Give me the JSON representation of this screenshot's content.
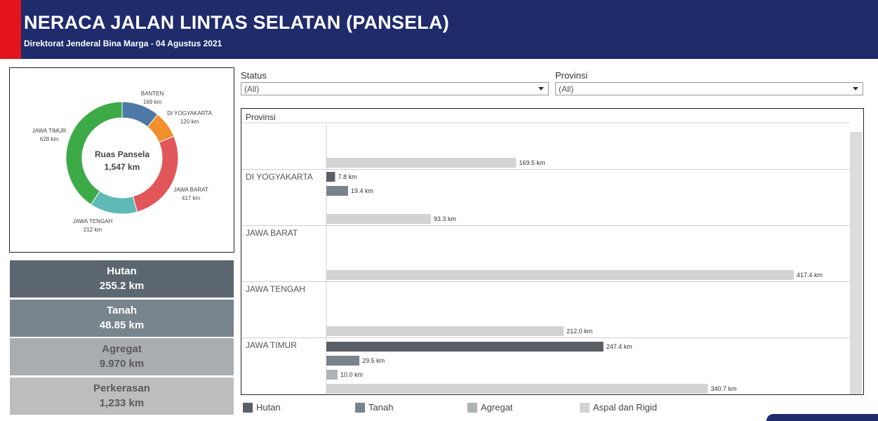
{
  "header": {
    "title": "NERACA JALAN LINTAS SELATAN (PANSELA)",
    "subtitle": "Direktorat Jenderal Bina Marga - 04 Agustus 2021"
  },
  "donut": {
    "center_title": "Ruas Pansela",
    "center_value": "1,547 km",
    "segments": [
      {
        "name": "BANTEN",
        "value_label": "169 km",
        "value": 169,
        "color": "#4e79a7"
      },
      {
        "name": "DI YOGYAKARTA",
        "value_label": "120 km",
        "value": 120,
        "color": "#f28e2b"
      },
      {
        "name": "JAWA BARAT",
        "value_label": "417 km",
        "value": 417,
        "color": "#e15759"
      },
      {
        "name": "JAWA TENGAH",
        "value_label": "212 km",
        "value": 212,
        "color": "#5fbab5"
      },
      {
        "name": "JAWA TIMUR",
        "value_label": "628 km",
        "value": 628,
        "color": "#3daa48"
      }
    ]
  },
  "kpis": [
    {
      "label": "Hutan",
      "value": "255.2 km",
      "bg": "#5b6670",
      "fg": "#ffffff"
    },
    {
      "label": "Tanah",
      "value": "48.85 km",
      "bg": "#79858c",
      "fg": "#ffffff"
    },
    {
      "label": "Agregat",
      "value": "9.970  km",
      "bg": "#a9adb0",
      "fg": "#5a5a5a"
    },
    {
      "label": "Perkerasan",
      "value": "1,233 km",
      "bg": "#bdbdbd",
      "fg": "#5a5a5a"
    }
  ],
  "filters": {
    "status_label": "Status",
    "status_value": "(All)",
    "provinsi_label": "Provinsi",
    "provinsi_value": "(All)"
  },
  "chart_header": "Provinsi",
  "chart_data": {
    "type": "bar",
    "orientation": "horizontal",
    "unit": "km",
    "series": [
      {
        "name": "Hutan",
        "color": "#5a5f66"
      },
      {
        "name": "Tanah",
        "color": "#79838c"
      },
      {
        "name": "Agregat",
        "color": "#b0b3b5"
      },
      {
        "name": "Aspal dan Rigid",
        "color": "#d3d3d3"
      }
    ],
    "groups": [
      {
        "province": "",
        "bars": [
          {
            "series": "Aspal dan Rigid",
            "value": 169.5,
            "label": "169.5 km"
          }
        ]
      },
      {
        "province": "DI YOGYAKARTA",
        "bars": [
          {
            "series": "Hutan",
            "value": 7.8,
            "label": "7.8 km"
          },
          {
            "series": "Tanah",
            "value": 19.4,
            "label": "19.4 km"
          },
          {
            "series": "Aspal dan Rigid",
            "value": 93.3,
            "label": "93.3 km"
          }
        ]
      },
      {
        "province": "JAWA BARAT",
        "bars": [
          {
            "series": "Aspal dan Rigid",
            "value": 417.4,
            "label": "417.4 km"
          }
        ]
      },
      {
        "province": "JAWA TENGAH",
        "bars": [
          {
            "series": "Aspal dan Rigid",
            "value": 212.0,
            "label": "212.0 km"
          }
        ]
      },
      {
        "province": "JAWA TIMUR",
        "bars": [
          {
            "series": "Hutan",
            "value": 247.4,
            "label": "247.4 km"
          },
          {
            "series": "Tanah",
            "value": 29.5,
            "label": "29.5 km"
          },
          {
            "series": "Agregat",
            "value": 10.0,
            "label": "10.0 km"
          },
          {
            "series": "Aspal dan Rigid",
            "value": 340.7,
            "label": "340.7 km"
          }
        ]
      }
    ]
  },
  "legend": [
    {
      "label": "Hutan",
      "color": "#5a5f66"
    },
    {
      "label": "Tanah",
      "color": "#79838c"
    },
    {
      "label": "Agregat",
      "color": "#b0b3b5"
    },
    {
      "label": "Aspal dan Rigid",
      "color": "#d3d3d3"
    }
  ]
}
